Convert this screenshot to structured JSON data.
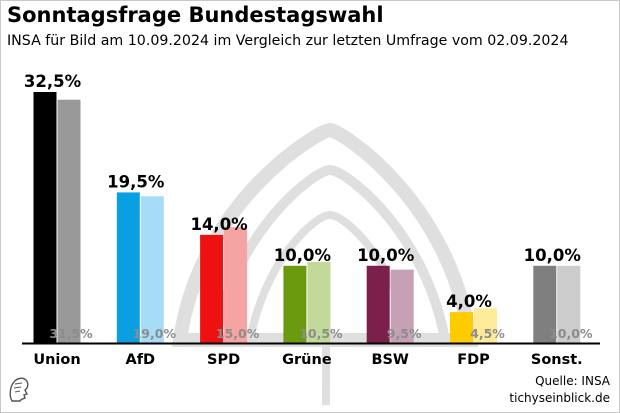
{
  "header": {
    "title": "Sonntagsfrage Bundestagswahl",
    "subtitle": "INSA für Bild am 10.09.2024 im Vergleich zur letzten Umfrage vom 02.09.2024"
  },
  "source": {
    "line1": "Quelle: INSA",
    "line2": "tichyseinblick.de"
  },
  "colors": {
    "union": "#000000",
    "union_prev": "#999999",
    "afd": "#0a9fe0",
    "afd_prev": "#a6dcf5",
    "spd": "#ee1111",
    "spd_prev": "#f6a3a3",
    "gruene": "#6a9a0e",
    "gruene_prev": "#c2d99a",
    "bsw": "#7b1f4b",
    "bsw_prev": "#c6a0b4",
    "fdp": "#ffcc00",
    "fdp_prev": "#fdeb9a",
    "sonst": "#7f7f7f",
    "sonst_prev": "#cccccc"
  },
  "chart_data": {
    "type": "bar",
    "categories": [
      "Union",
      "AfD",
      "SPD",
      "Grüne",
      "BSW",
      "FDP",
      "Sonst."
    ],
    "series": [
      {
        "values": [
          32.5,
          19.5,
          14.0,
          10.0,
          10.0,
          4.0,
          10.0
        ],
        "labels": [
          "32,5%",
          "19,5%",
          "14,0%",
          "10,0%",
          "10,0%",
          "4,0%",
          "10,0%"
        ],
        "colors": [
          "#000000",
          "#0a9fe0",
          "#ee1111",
          "#6a9a0e",
          "#7b1f4b",
          "#ffcc00",
          "#7f7f7f"
        ]
      },
      {
        "values": [
          31.5,
          19.0,
          15.0,
          10.5,
          9.5,
          4.5,
          10.0
        ],
        "labels": [
          "31,5%",
          "19,0%",
          "15,0%",
          "10,5%",
          "9,5%",
          "4,5%",
          "10,0%"
        ],
        "colors": [
          "#999999",
          "#a6dcf5",
          "#f6a3a3",
          "#c2d99a",
          "#c6a0b4",
          "#fdeb9a",
          "#cccccc"
        ]
      }
    ],
    "ylim": [
      0,
      32.5
    ],
    "grid": false
  }
}
